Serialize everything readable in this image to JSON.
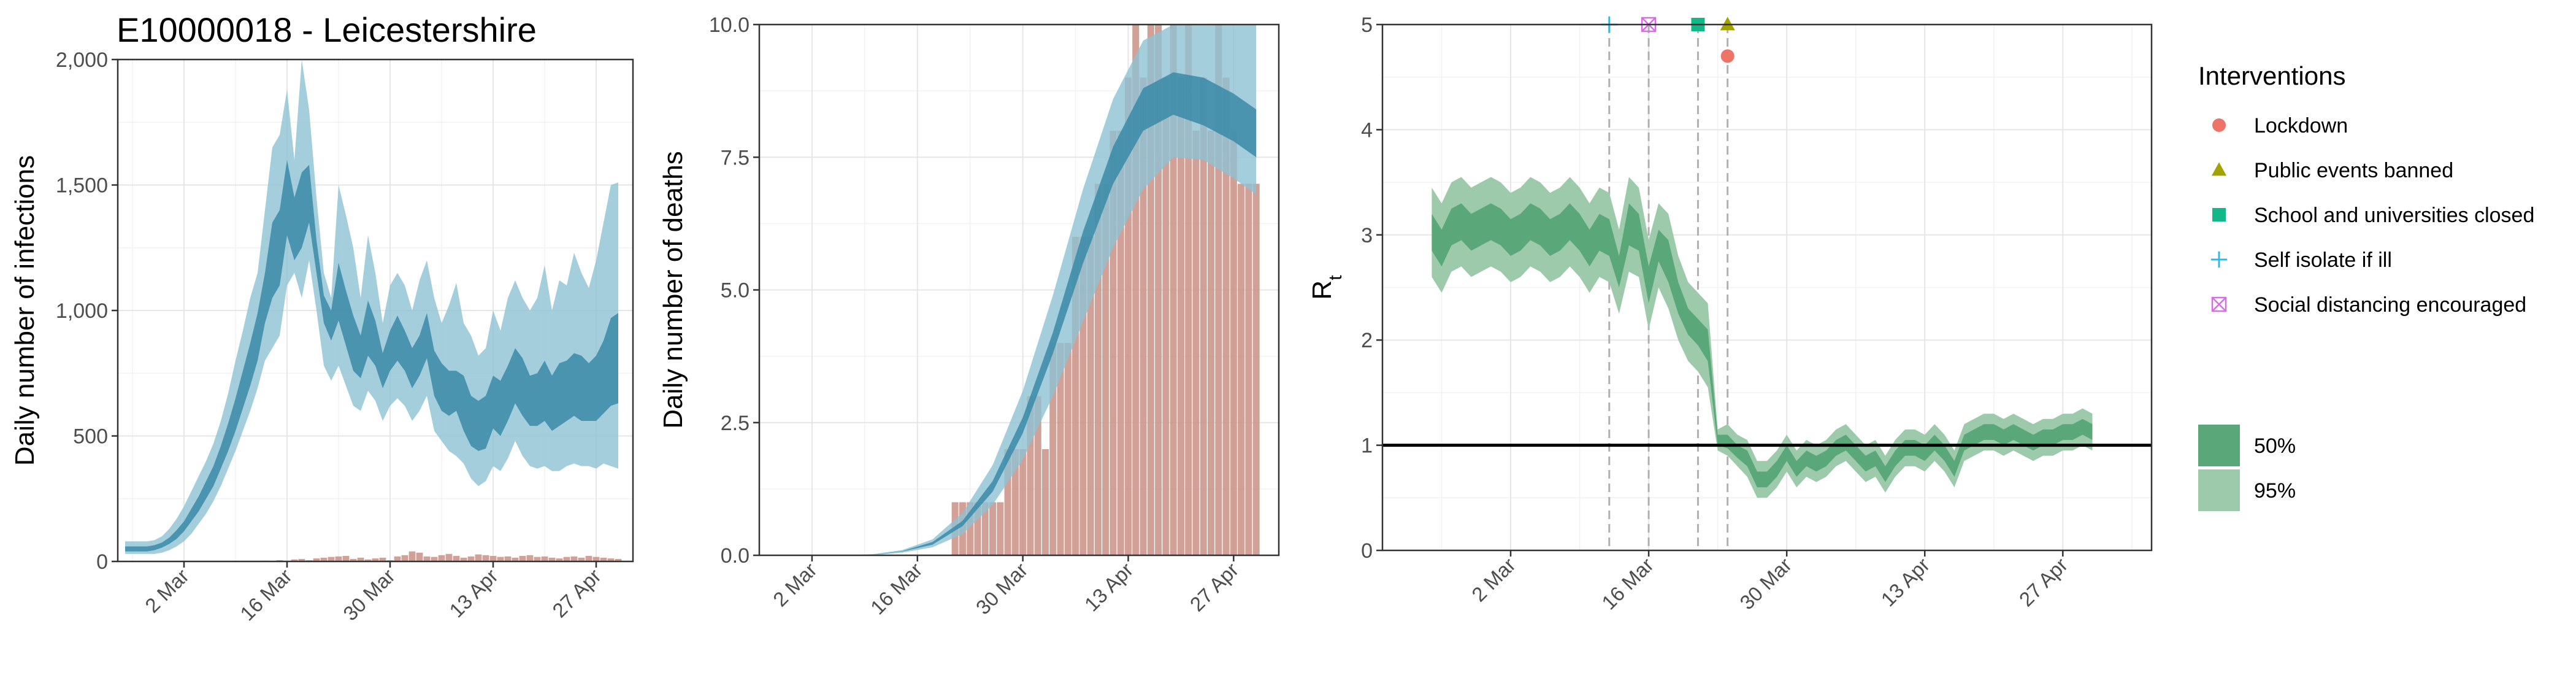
{
  "title": "E10000018 - Leicestershire",
  "x_tick_labels": [
    "2 Mar",
    "16 Mar",
    "30 Mar",
    "13 Apr",
    "27 Apr"
  ],
  "chart_data": [
    {
      "type": "area",
      "ylabel": "Daily number of infections",
      "ylim": [
        0,
        2000
      ],
      "y_ticks": [
        0,
        500,
        1000,
        1500,
        2000
      ],
      "y_tick_labels": [
        "0",
        "500",
        "1,000",
        "1,500",
        "2,000"
      ],
      "xlim": [
        "2020-02-22",
        "2020-05-02"
      ],
      "grid": true,
      "colors": {
        "band95": "#8fc2d3",
        "band50": "#3a89a8",
        "bars": "#c98f85"
      },
      "x": [
        "2020-02-23",
        "2020-02-24",
        "2020-02-25",
        "2020-02-26",
        "2020-02-27",
        "2020-02-28",
        "2020-02-29",
        "2020-03-01",
        "2020-03-02",
        "2020-03-03",
        "2020-03-04",
        "2020-03-05",
        "2020-03-06",
        "2020-03-07",
        "2020-03-08",
        "2020-03-09",
        "2020-03-10",
        "2020-03-11",
        "2020-03-12",
        "2020-03-13",
        "2020-03-14",
        "2020-03-15",
        "2020-03-16",
        "2020-03-17",
        "2020-03-18",
        "2020-03-19",
        "2020-03-20",
        "2020-03-21",
        "2020-03-22",
        "2020-03-23",
        "2020-03-24",
        "2020-03-25",
        "2020-03-26",
        "2020-03-27",
        "2020-03-28",
        "2020-03-29",
        "2020-03-30",
        "2020-03-31",
        "2020-04-01",
        "2020-04-02",
        "2020-04-03",
        "2020-04-04",
        "2020-04-05",
        "2020-04-06",
        "2020-04-07",
        "2020-04-08",
        "2020-04-09",
        "2020-04-10",
        "2020-04-11",
        "2020-04-12",
        "2020-04-13",
        "2020-04-14",
        "2020-04-15",
        "2020-04-16",
        "2020-04-17",
        "2020-04-18",
        "2020-04-19",
        "2020-04-20",
        "2020-04-21",
        "2020-04-22",
        "2020-04-23",
        "2020-04-24",
        "2020-04-25",
        "2020-04-26",
        "2020-04-27",
        "2020-04-28",
        "2020-04-29",
        "2020-04-30"
      ],
      "lo95": [
        30,
        30,
        30,
        30,
        30,
        35,
        45,
        60,
        80,
        110,
        150,
        190,
        240,
        300,
        370,
        440,
        520,
        600,
        690,
        800,
        850,
        900,
        1100,
        1150,
        1050,
        1200,
        1000,
        780,
        720,
        780,
        700,
        620,
        600,
        680,
        640,
        560,
        620,
        650,
        620,
        560,
        600,
        660,
        520,
        480,
        440,
        420,
        390,
        330,
        300,
        320,
        380,
        360,
        410,
        480,
        420,
        380,
        370,
        380,
        360,
        360,
        380,
        390,
        380,
        380,
        370,
        390,
        380,
        370
      ],
      "hi95": [
        80,
        80,
        80,
        80,
        85,
        100,
        130,
        170,
        220,
        280,
        340,
        400,
        470,
        560,
        670,
        800,
        920,
        1050,
        1150,
        1400,
        1650,
        1700,
        1880,
        1600,
        2000,
        1800,
        1450,
        1150,
        1050,
        1500,
        1380,
        1250,
        1050,
        1300,
        1150,
        950,
        1100,
        1150,
        1100,
        1000,
        1120,
        1200,
        1050,
        950,
        1020,
        1110,
        950,
        900,
        820,
        850,
        1000,
        920,
        1050,
        1120,
        1050,
        1000,
        1050,
        1180,
        1000,
        1120,
        1100,
        1230,
        1150,
        1090,
        1200,
        1350,
        1500,
        1510
      ],
      "lo50": [
        40,
        40,
        40,
        40,
        45,
        55,
        70,
        90,
        120,
        160,
        200,
        250,
        300,
        370,
        440,
        520,
        610,
        700,
        800,
        950,
        1050,
        1100,
        1300,
        1200,
        1250,
        1350,
        1150,
        950,
        880,
        960,
        860,
        760,
        730,
        820,
        780,
        690,
        760,
        800,
        760,
        690,
        740,
        810,
        660,
        600,
        580,
        600,
        520,
        460,
        440,
        450,
        530,
        500,
        560,
        630,
        580,
        540,
        540,
        560,
        520,
        540,
        560,
        580,
        560,
        560,
        560,
        590,
        620,
        630
      ],
      "hi50": [
        60,
        60,
        60,
        60,
        65,
        75,
        95,
        125,
        160,
        210,
        260,
        320,
        380,
        460,
        550,
        650,
        760,
        870,
        990,
        1150,
        1350,
        1400,
        1600,
        1450,
        1550,
        1580,
        1280,
        1060,
        1000,
        1190,
        1080,
        980,
        900,
        1040,
        960,
        830,
        920,
        980,
        920,
        850,
        900,
        990,
        840,
        790,
        760,
        760,
        740,
        660,
        640,
        660,
        740,
        720,
        780,
        850,
        810,
        740,
        750,
        800,
        740,
        790,
        800,
        830,
        820,
        790,
        820,
        880,
        970,
        990
      ],
      "bar_x": [
        "2020-03-13",
        "2020-03-14",
        "2020-03-15",
        "2020-03-16",
        "2020-03-17",
        "2020-03-18",
        "2020-03-19",
        "2020-03-20",
        "2020-03-21",
        "2020-03-22",
        "2020-03-23",
        "2020-03-24",
        "2020-03-25",
        "2020-03-26",
        "2020-03-27",
        "2020-03-28",
        "2020-03-29",
        "2020-03-30",
        "2020-03-31",
        "2020-04-01",
        "2020-04-02",
        "2020-04-03",
        "2020-04-04",
        "2020-04-05",
        "2020-04-06",
        "2020-04-07",
        "2020-04-08",
        "2020-04-09",
        "2020-04-10",
        "2020-04-11",
        "2020-04-12",
        "2020-04-13",
        "2020-04-14",
        "2020-04-15",
        "2020-04-16",
        "2020-04-17",
        "2020-04-18",
        "2020-04-19",
        "2020-04-20",
        "2020-04-21",
        "2020-04-22",
        "2020-04-23",
        "2020-04-24",
        "2020-04-25",
        "2020-04-26",
        "2020-04-27",
        "2020-04-28",
        "2020-04-29",
        "2020-04-30"
      ],
      "bar_values": [
        3,
        0,
        5,
        0,
        8,
        10,
        5,
        12,
        15,
        18,
        20,
        22,
        10,
        15,
        8,
        12,
        15,
        5,
        20,
        25,
        40,
        35,
        20,
        18,
        25,
        30,
        22,
        15,
        20,
        28,
        25,
        22,
        18,
        20,
        15,
        22,
        25,
        18,
        20,
        15,
        12,
        18,
        20,
        15,
        22,
        18,
        15,
        12,
        10
      ]
    },
    {
      "type": "area",
      "ylabel": "Daily number of deaths",
      "ylim": [
        0,
        10
      ],
      "y_ticks": [
        0,
        2.5,
        5,
        7.5,
        10
      ],
      "y_tick_labels": [
        "0.0",
        "2.5",
        "5.0",
        "7.5",
        "10.0"
      ],
      "xlim": [
        "2020-02-24",
        "2020-05-03"
      ],
      "grid": true,
      "colors": {
        "band95": "#8fc2d3",
        "band50": "#3a89a8",
        "bars": "#c98f85"
      },
      "x": [
        "2020-03-02",
        "2020-03-06",
        "2020-03-10",
        "2020-03-14",
        "2020-03-18",
        "2020-03-22",
        "2020-03-26",
        "2020-03-30",
        "2020-04-03",
        "2020-04-07",
        "2020-04-11",
        "2020-04-15",
        "2020-04-19",
        "2020-04-23",
        "2020-04-27",
        "2020-04-30"
      ],
      "lo95": [
        0,
        0,
        0,
        0.05,
        0.15,
        0.4,
        0.95,
        1.8,
        3.0,
        4.4,
        5.8,
        6.9,
        7.5,
        7.45,
        7.1,
        6.8
      ],
      "hi95": [
        0,
        0,
        0.02,
        0.1,
        0.3,
        0.8,
        1.7,
        3.1,
        4.9,
        6.9,
        8.6,
        9.7,
        10.0,
        10.0,
        10.0,
        10.0
      ],
      "lo50": [
        0,
        0,
        0.01,
        0.07,
        0.2,
        0.55,
        1.2,
        2.3,
        3.8,
        5.5,
        7.0,
        8.0,
        8.3,
        8.1,
        7.8,
        7.5
      ],
      "hi50": [
        0,
        0,
        0.01,
        0.08,
        0.25,
        0.65,
        1.4,
        2.6,
        4.2,
        6.1,
        7.7,
        8.8,
        9.1,
        9.0,
        8.7,
        8.4
      ],
      "bar_x": [
        "2020-03-21",
        "2020-03-22",
        "2020-03-23",
        "2020-03-24",
        "2020-03-25",
        "2020-03-26",
        "2020-03-27",
        "2020-03-28",
        "2020-03-29",
        "2020-03-30",
        "2020-03-31",
        "2020-04-01",
        "2020-04-02",
        "2020-04-03",
        "2020-04-04",
        "2020-04-05",
        "2020-04-06",
        "2020-04-07",
        "2020-04-08",
        "2020-04-09",
        "2020-04-10",
        "2020-04-11",
        "2020-04-12",
        "2020-04-13",
        "2020-04-14",
        "2020-04-15",
        "2020-04-16",
        "2020-04-17",
        "2020-04-18",
        "2020-04-19",
        "2020-04-20",
        "2020-04-21",
        "2020-04-22",
        "2020-04-23",
        "2020-04-24",
        "2020-04-25",
        "2020-04-26",
        "2020-04-27",
        "2020-04-28",
        "2020-04-29",
        "2020-04-30"
      ],
      "bar_values": [
        1,
        1,
        1,
        1,
        1,
        1,
        1,
        2,
        2,
        2,
        3,
        3,
        2,
        4,
        4,
        4,
        6,
        6,
        6,
        7,
        7,
        8,
        8,
        9,
        10,
        9,
        10,
        10,
        9,
        10,
        9,
        10,
        8,
        9,
        8,
        10,
        9,
        8,
        7,
        7,
        7
      ]
    },
    {
      "type": "area",
      "ylabel": "R",
      "ylabel_subscript": "t",
      "ylim": [
        0,
        5
      ],
      "y_ticks": [
        0,
        1,
        2,
        3,
        4,
        5
      ],
      "y_tick_labels": [
        "0",
        "1",
        "2",
        "3",
        "4",
        "5"
      ],
      "xlim": [
        "2020-02-18",
        "2020-05-06"
      ],
      "grid": true,
      "reference_line": 1,
      "colors": {
        "band50": "#5aa87a",
        "band95": "#9dcaaa",
        "reference_line": "#000000",
        "vline": "#b0b0b0"
      },
      "x": [
        "2020-02-23",
        "2020-02-24",
        "2020-02-25",
        "2020-02-26",
        "2020-02-27",
        "2020-02-28",
        "2020-02-29",
        "2020-03-01",
        "2020-03-02",
        "2020-03-03",
        "2020-03-04",
        "2020-03-05",
        "2020-03-06",
        "2020-03-07",
        "2020-03-08",
        "2020-03-09",
        "2020-03-10",
        "2020-03-11",
        "2020-03-12",
        "2020-03-13",
        "2020-03-14",
        "2020-03-15",
        "2020-03-16",
        "2020-03-17",
        "2020-03-18",
        "2020-03-19",
        "2020-03-20",
        "2020-03-21",
        "2020-03-22",
        "2020-03-23",
        "2020-03-24",
        "2020-03-25",
        "2020-03-26",
        "2020-03-27",
        "2020-03-28",
        "2020-03-29",
        "2020-03-30",
        "2020-03-31",
        "2020-04-01",
        "2020-04-02",
        "2020-04-03",
        "2020-04-04",
        "2020-04-05",
        "2020-04-06",
        "2020-04-07",
        "2020-04-08",
        "2020-04-09",
        "2020-04-10",
        "2020-04-11",
        "2020-04-12",
        "2020-04-13",
        "2020-04-14",
        "2020-04-15",
        "2020-04-16",
        "2020-04-17",
        "2020-04-18",
        "2020-04-19",
        "2020-04-20",
        "2020-04-21",
        "2020-04-22",
        "2020-04-23",
        "2020-04-24",
        "2020-04-25",
        "2020-04-26",
        "2020-04-27",
        "2020-04-28",
        "2020-04-29",
        "2020-04-30"
      ],
      "lo95": [
        2.6,
        2.45,
        2.65,
        2.7,
        2.6,
        2.65,
        2.7,
        2.65,
        2.55,
        2.6,
        2.7,
        2.65,
        2.55,
        2.6,
        2.7,
        2.6,
        2.45,
        2.6,
        2.55,
        2.25,
        2.65,
        2.6,
        2.1,
        2.5,
        2.3,
        2.0,
        1.8,
        1.7,
        1.55,
        0.95,
        0.9,
        0.8,
        0.7,
        0.5,
        0.5,
        0.6,
        0.75,
        0.6,
        0.7,
        0.65,
        0.7,
        0.8,
        0.85,
        0.75,
        0.65,
        0.7,
        0.55,
        0.7,
        0.8,
        0.8,
        0.75,
        0.85,
        0.75,
        0.6,
        0.85,
        0.9,
        0.95,
        0.95,
        0.9,
        0.95,
        0.9,
        0.85,
        0.9,
        0.9,
        0.95,
        0.95,
        1.0,
        0.95
      ],
      "hi95": [
        3.45,
        3.3,
        3.5,
        3.55,
        3.45,
        3.5,
        3.55,
        3.5,
        3.4,
        3.45,
        3.55,
        3.5,
        3.4,
        3.45,
        3.55,
        3.45,
        3.3,
        3.45,
        3.4,
        3.05,
        3.55,
        3.45,
        2.95,
        3.3,
        3.2,
        2.8,
        2.55,
        2.45,
        2.35,
        1.15,
        1.2,
        1.1,
        1.05,
        0.85,
        0.85,
        0.95,
        1.1,
        0.95,
        1.05,
        1.0,
        1.05,
        1.15,
        1.2,
        1.1,
        1.0,
        1.05,
        0.9,
        1.05,
        1.15,
        1.15,
        1.1,
        1.2,
        1.1,
        0.95,
        1.2,
        1.25,
        1.3,
        1.3,
        1.25,
        1.3,
        1.25,
        1.2,
        1.25,
        1.25,
        1.3,
        1.3,
        1.35,
        1.3
      ],
      "lo50": [
        2.85,
        2.7,
        2.9,
        2.95,
        2.85,
        2.9,
        2.95,
        2.9,
        2.8,
        2.85,
        2.95,
        2.9,
        2.8,
        2.85,
        2.95,
        2.85,
        2.7,
        2.85,
        2.8,
        2.5,
        2.9,
        2.85,
        2.35,
        2.75,
        2.55,
        2.25,
        2.05,
        1.95,
        1.8,
        1.0,
        0.97,
        0.88,
        0.8,
        0.6,
        0.6,
        0.7,
        0.85,
        0.7,
        0.8,
        0.75,
        0.8,
        0.9,
        0.95,
        0.85,
        0.75,
        0.8,
        0.65,
        0.8,
        0.9,
        0.9,
        0.85,
        0.95,
        0.85,
        0.7,
        0.95,
        1.0,
        1.05,
        1.05,
        1.0,
        1.05,
        1.0,
        0.95,
        1.0,
        1.0,
        1.05,
        1.05,
        1.1,
        1.05
      ],
      "hi50": [
        3.2,
        3.05,
        3.25,
        3.3,
        3.2,
        3.25,
        3.3,
        3.25,
        3.15,
        3.2,
        3.3,
        3.25,
        3.15,
        3.2,
        3.3,
        3.2,
        3.05,
        3.2,
        3.15,
        2.8,
        3.3,
        3.2,
        2.7,
        3.05,
        2.95,
        2.55,
        2.3,
        2.2,
        2.1,
        1.1,
        1.1,
        1.0,
        0.95,
        0.75,
        0.75,
        0.85,
        1.0,
        0.85,
        0.95,
        0.9,
        0.95,
        1.05,
        1.1,
        1.0,
        0.9,
        0.95,
        0.8,
        0.95,
        1.05,
        1.05,
        1.0,
        1.1,
        1.0,
        0.85,
        1.1,
        1.15,
        1.2,
        1.2,
        1.15,
        1.2,
        1.15,
        1.1,
        1.15,
        1.15,
        1.2,
        1.2,
        1.25,
        1.2
      ],
      "interventions": [
        {
          "name": "Self isolate if ill",
          "date": "2020-03-12",
          "value": 5.0,
          "shape": "plus",
          "color": "#35b8e0"
        },
        {
          "name": "Social distancing encouraged",
          "date": "2020-03-16",
          "value": 5.0,
          "shape": "square-x",
          "color": "#d56ee6"
        },
        {
          "name": "School and universities closed",
          "date": "2020-03-21",
          "value": 5.0,
          "shape": "square",
          "color": "#12b888"
        },
        {
          "name": "Public events banned",
          "date": "2020-03-24",
          "value": 5.0,
          "shape": "triangle",
          "color": "#a3a300"
        },
        {
          "name": "Lockdown",
          "date": "2020-03-24",
          "value": 4.7,
          "shape": "circle",
          "color": "#ee7468"
        }
      ],
      "vlines": [
        "2020-03-12",
        "2020-03-16",
        "2020-03-21",
        "2020-03-24"
      ]
    }
  ],
  "legend": {
    "interventions_title": "Interventions",
    "interventions": [
      {
        "label": "Lockdown",
        "shape": "circle",
        "color": "#ee7468"
      },
      {
        "label": "Public events banned",
        "shape": "triangle",
        "color": "#a3a300"
      },
      {
        "label": "School and universities closed",
        "shape": "square",
        "color": "#12b888"
      },
      {
        "label": "Self isolate if ill",
        "shape": "plus",
        "color": "#35b8e0"
      },
      {
        "label": "Social distancing encouraged",
        "shape": "square-x",
        "color": "#d56ee6"
      }
    ],
    "intervals": [
      {
        "label": "50%",
        "color": "#5aa87a"
      },
      {
        "label": "95%",
        "color": "#9dcaaa"
      }
    ]
  }
}
